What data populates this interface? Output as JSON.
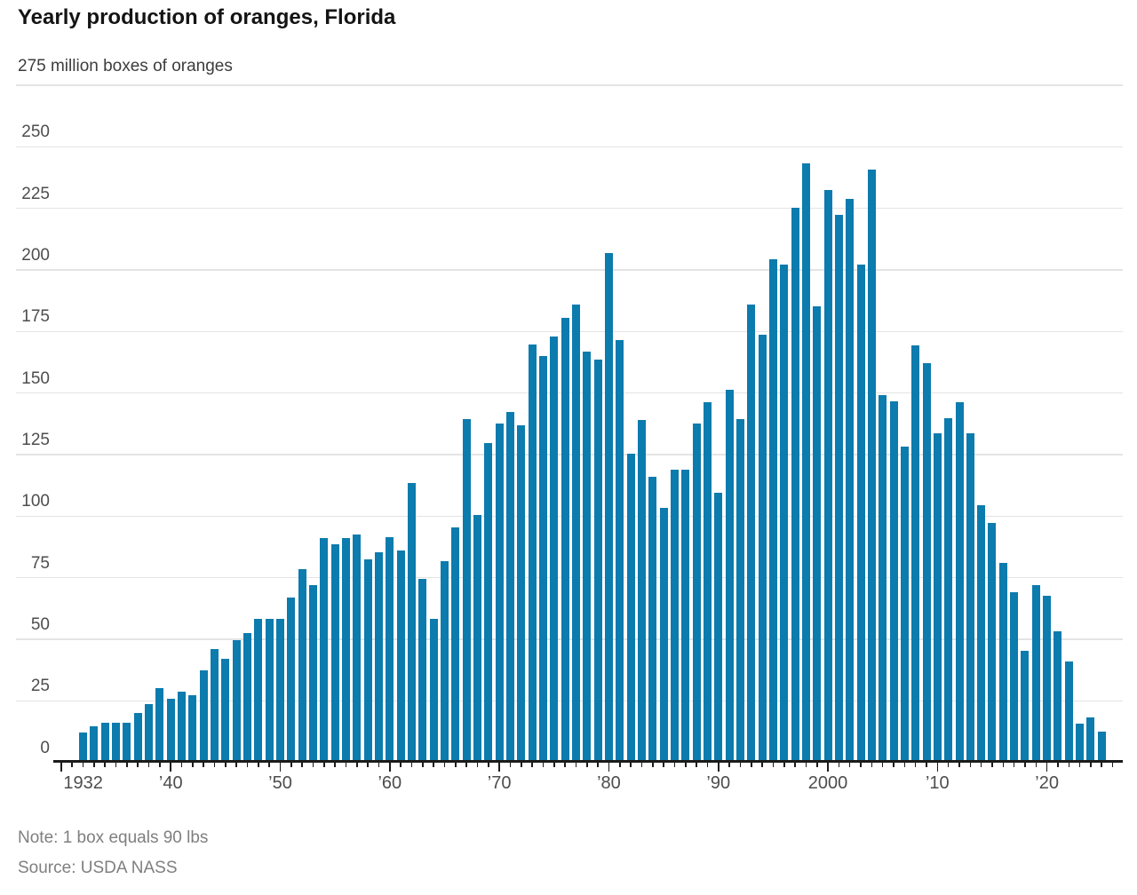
{
  "title": "Yearly production of oranges, Florida",
  "note": "Note: 1 box equals 90 lbs",
  "source": "Source: USDA NASS",
  "chart_data": {
    "type": "bar",
    "title": "Yearly production of oranges, Florida",
    "unit_label": "275 million boxes of oranges",
    "ylabel": "million boxes of oranges",
    "ylim": [
      0,
      275
    ],
    "yticks": [
      0,
      25,
      50,
      75,
      100,
      125,
      150,
      175,
      200,
      225,
      250,
      275
    ],
    "grid": true,
    "legend": "none",
    "x_start_year": 1932,
    "x_end_year": 2025,
    "xticklabels": [
      {
        "year": 1932,
        "label": "1932"
      },
      {
        "year": 1940,
        "label": "’40"
      },
      {
        "year": 1950,
        "label": "’50"
      },
      {
        "year": 1960,
        "label": "’60"
      },
      {
        "year": 1970,
        "label": "’70"
      },
      {
        "year": 1980,
        "label": "’80"
      },
      {
        "year": 1990,
        "label": "’90"
      },
      {
        "year": 2000,
        "label": "2000"
      },
      {
        "year": 2010,
        "label": "’10"
      },
      {
        "year": 2020,
        "label": "’20"
      }
    ],
    "values": [
      12.1,
      14.8,
      16.2,
      16.0,
      16.0,
      19.9,
      23.8,
      30.1,
      25.9,
      28.6,
      27.2,
      37.4,
      46.0,
      42.2,
      49.6,
      52.4,
      58.3,
      58.3,
      58.3,
      67.0,
      78.6,
      72.0,
      91.1,
      88.4,
      91.0,
      92.5,
      82.5,
      85.5,
      91.3,
      86.1,
      113.4,
      74.5,
      58.2,
      81.8,
      95.3,
      139.5,
      100.5,
      129.7,
      137.7,
      142.3,
      137.0,
      169.7,
      165.0,
      172.8,
      180.5,
      185.8,
      167.0,
      163.4,
      206.7,
      171.5,
      125.4,
      139.0,
      116.1,
      103.3,
      119.0,
      119.0,
      137.7,
      146.1,
      109.6,
      151.2,
      139.3,
      186.0,
      173.5,
      204.4,
      202.1,
      225.4,
      243.2,
      185.2,
      232.4,
      222.4,
      228.8,
      202.3,
      240.8,
      149.3,
      146.7,
      128.4,
      169.4,
      162.0,
      133.5,
      139.9,
      146.4,
      133.5,
      104.3,
      97.1,
      80.9,
      69.2,
      45.3,
      72.0,
      67.5,
      53.4,
      40.9,
      15.8,
      18.2,
      12.6
    ],
    "bar_color": "#0c7bad"
  },
  "colors": {
    "bar": "#0c7bad",
    "gridline": "#e4e4e4",
    "axis": "#1b1b1b",
    "title_text": "#141414",
    "tick_text": "#4d4d4d",
    "note_text": "#7f7f7f"
  }
}
